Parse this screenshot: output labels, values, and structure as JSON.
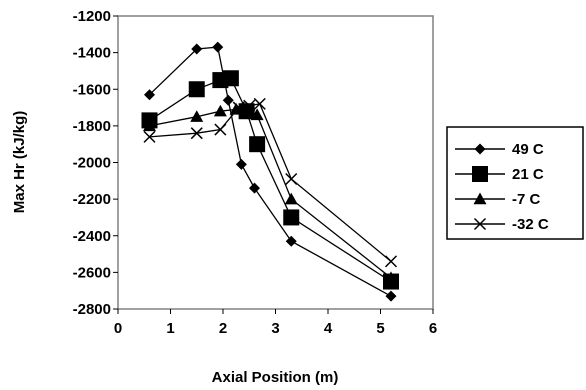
{
  "chart_data": {
    "type": "line",
    "title": "",
    "xlabel": "Axial Position (m)",
    "ylabel": "Max Hr (kJ/kg)",
    "xlim": [
      0,
      6
    ],
    "ylim": [
      -2800,
      -1200
    ],
    "xticks": [
      "0",
      "1",
      "2",
      "3",
      "4",
      "5",
      "6"
    ],
    "yticks": [
      "-1200",
      "-1400",
      "-1600",
      "-1800",
      "-2000",
      "-2200",
      "-2400",
      "-2600",
      "-2800"
    ],
    "grid": false,
    "legend_position": "right",
    "series": [
      {
        "name": "49 C",
        "marker": "diamond",
        "points": [
          [
            0.6,
            -1630
          ],
          [
            1.5,
            -1380
          ],
          [
            1.9,
            -1370
          ],
          [
            2.1,
            -1660
          ],
          [
            2.35,
            -2010
          ],
          [
            2.6,
            -2140
          ],
          [
            3.3,
            -2430
          ],
          [
            5.2,
            -2730
          ]
        ]
      },
      {
        "name": "21 C",
        "marker": "square",
        "points": [
          [
            0.6,
            -1770
          ],
          [
            1.5,
            -1600
          ],
          [
            1.95,
            -1550
          ],
          [
            2.15,
            -1540
          ],
          [
            2.45,
            -1720
          ],
          [
            2.65,
            -1900
          ],
          [
            3.3,
            -2300
          ],
          [
            5.2,
            -2650
          ]
        ]
      },
      {
        "name": "-7 C",
        "marker": "triangle",
        "points": [
          [
            0.6,
            -1800
          ],
          [
            1.5,
            -1750
          ],
          [
            1.95,
            -1720
          ],
          [
            2.25,
            -1710
          ],
          [
            2.45,
            -1710
          ],
          [
            2.65,
            -1740
          ],
          [
            3.3,
            -2200
          ],
          [
            5.2,
            -2630
          ]
        ]
      },
      {
        "name": "-32 C",
        "marker": "cross",
        "points": [
          [
            0.6,
            -1860
          ],
          [
            1.5,
            -1840
          ],
          [
            1.95,
            -1820
          ],
          [
            2.3,
            -1700
          ],
          [
            2.5,
            -1690
          ],
          [
            2.7,
            -1680
          ],
          [
            3.3,
            -2090
          ],
          [
            5.2,
            -2540
          ]
        ]
      }
    ]
  }
}
